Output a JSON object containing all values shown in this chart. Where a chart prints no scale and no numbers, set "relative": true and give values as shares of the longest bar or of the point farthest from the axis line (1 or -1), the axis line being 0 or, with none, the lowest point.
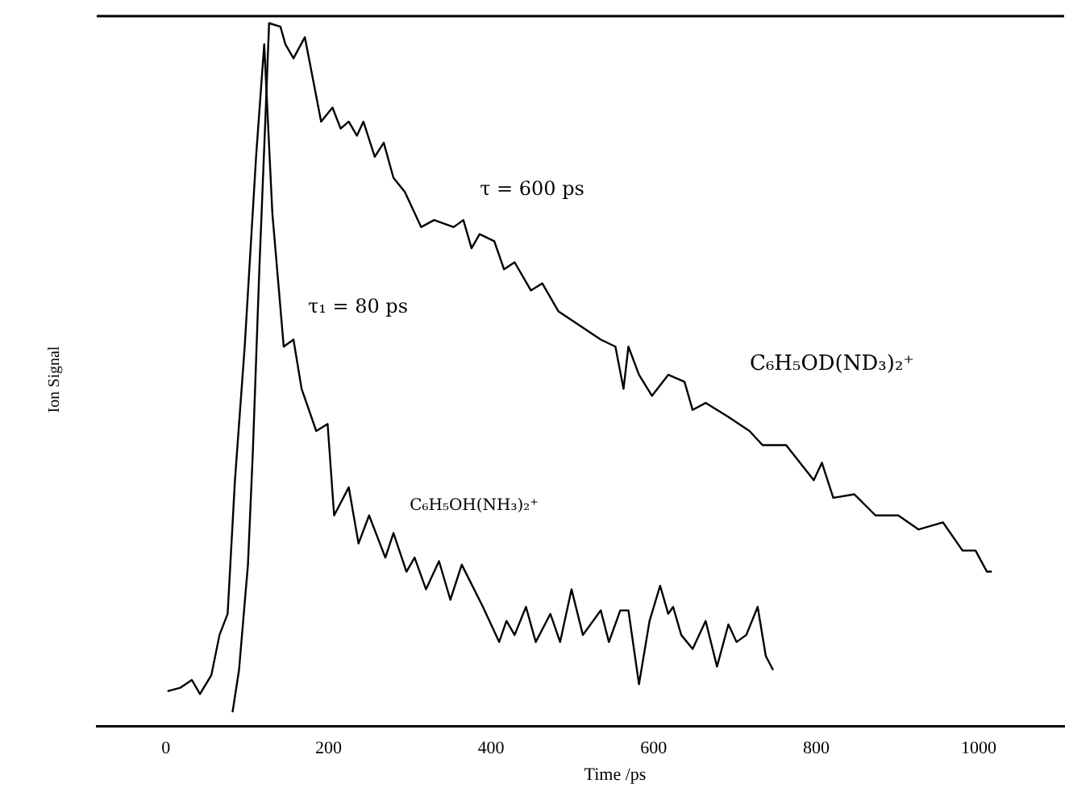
{
  "chart_data": {
    "type": "line",
    "xlabel": "Time  /ps",
    "ylabel": "Ion Signal",
    "relative": true,
    "xlim": [
      -85,
      1105
    ],
    "xticks": [
      0,
      200,
      400,
      600,
      800,
      1000
    ],
    "tick_labels": "x",
    "grid": false,
    "legend": false,
    "marker": "none",
    "annotations": [
      "τ = 600 ps",
      "τ₁ = 80 ps"
    ],
    "series": [
      {
        "name": "C₆H₅OD(ND₃)₂⁺",
        "color": "#000000",
        "x": [
          82,
          90,
          101,
          107,
          115,
          123,
          127,
          141,
          147,
          157,
          171,
          181,
          191,
          205,
          215,
          225,
          235,
          243,
          257,
          268,
          280,
          294,
          314,
          330,
          354,
          366,
          376,
          386,
          404,
          416,
          429,
          449,
          463,
          483,
          509,
          535,
          553,
          563,
          569,
          582,
          598,
          618,
          638,
          648,
          664,
          692,
          718,
          734,
          763,
          797,
          807,
          821,
          847,
          873,
          901,
          926,
          956,
          980,
          996,
          1010,
          1016
        ],
        "values": [
          0.02,
          0.08,
          0.23,
          0.39,
          0.65,
          0.88,
          1,
          0.995,
          0.97,
          0.95,
          0.98,
          0.92,
          0.86,
          0.88,
          0.85,
          0.86,
          0.84,
          0.86,
          0.81,
          0.83,
          0.78,
          0.76,
          0.71,
          0.72,
          0.71,
          0.72,
          0.68,
          0.7,
          0.69,
          0.65,
          0.66,
          0.62,
          0.63,
          0.59,
          0.57,
          0.55,
          0.54,
          0.48,
          0.54,
          0.5,
          0.47,
          0.5,
          0.49,
          0.45,
          0.46,
          0.44,
          0.42,
          0.4,
          0.4,
          0.35,
          0.375,
          0.325,
          0.33,
          0.3,
          0.3,
          0.28,
          0.29,
          0.25,
          0.25,
          0.22,
          0.22
        ]
      },
      {
        "name": "C₆H₅OH(NH₃)₂⁺",
        "color": "#000000",
        "x": [
          2,
          18,
          32,
          42,
          56,
          66,
          76,
          85,
          97,
          111,
          121,
          131,
          145,
          157,
          167,
          185,
          199,
          207,
          225,
          237,
          250,
          270,
          280,
          296,
          306,
          320,
          336,
          350,
          364,
          390,
          410,
          419,
          429,
          443,
          455,
          473,
          485,
          499,
          513,
          535,
          545,
          559,
          569,
          582,
          595,
          608,
          618,
          624,
          634,
          648,
          664,
          678,
          692,
          702,
          714,
          728,
          738,
          747
        ],
        "values": [
          0.05,
          0.055,
          0.066,
          0.046,
          0.073,
          0.13,
          0.16,
          0.35,
          0.54,
          0.81,
          0.97,
          0.73,
          0.54,
          0.55,
          0.48,
          0.42,
          0.43,
          0.3,
          0.34,
          0.26,
          0.3,
          0.24,
          0.275,
          0.22,
          0.24,
          0.195,
          0.235,
          0.18,
          0.23,
          0.17,
          0.12,
          0.15,
          0.13,
          0.17,
          0.12,
          0.16,
          0.12,
          0.195,
          0.13,
          0.165,
          0.12,
          0.165,
          0.165,
          0.06,
          0.15,
          0.2,
          0.16,
          0.17,
          0.13,
          0.11,
          0.15,
          0.085,
          0.145,
          0.12,
          0.13,
          0.17,
          0.1,
          0.08
        ]
      }
    ]
  }
}
